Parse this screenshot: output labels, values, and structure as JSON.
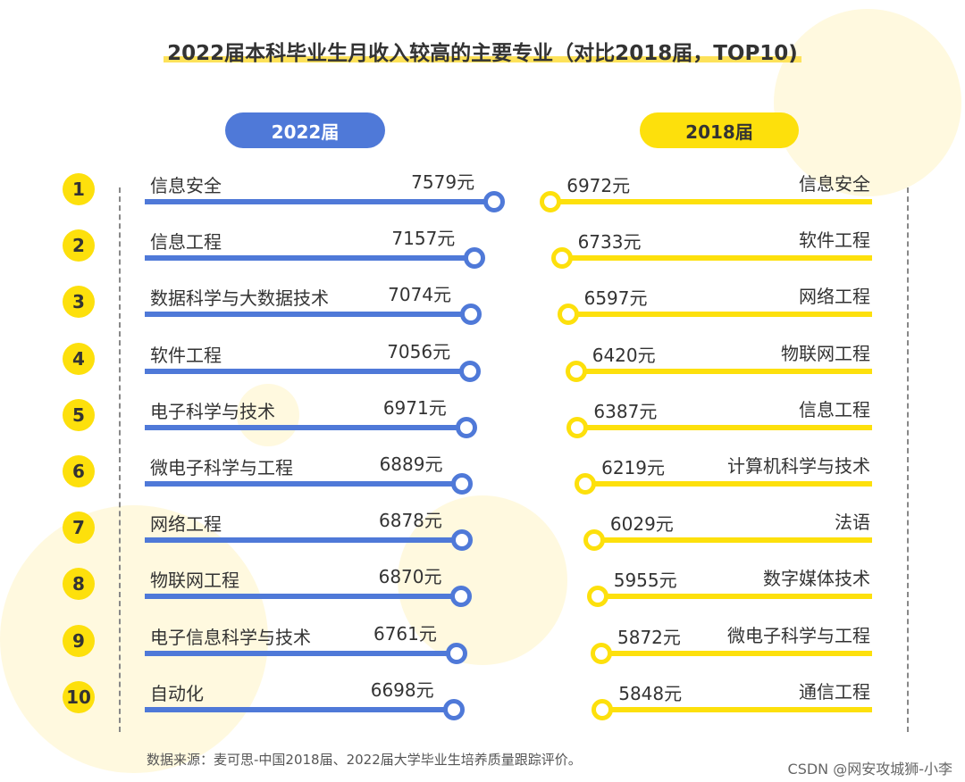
{
  "title": "2022届本科毕业生月收入较高的主要专业（对比2018届，TOP10)",
  "source": "数据来源：麦可思-中国2018届、2022届大学毕业生培养质量跟踪评价。",
  "watermark": "CSDN @网安攻城狮-小李",
  "colors": {
    "left": "#4f79d8",
    "right": "#fde00c"
  },
  "chart_data": {
    "type": "bar",
    "unit": "元",
    "ranks": [
      "1",
      "2",
      "3",
      "4",
      "5",
      "6",
      "7",
      "8",
      "9",
      "10"
    ],
    "series": [
      {
        "name": "2022届",
        "categories": [
          "信息安全",
          "信息工程",
          "数据科学与大数据技术",
          "软件工程",
          "电子科学与技术",
          "微电子科学与工程",
          "网络工程",
          "物联网工程",
          "电子信息科学与技术",
          "自动化"
        ],
        "values": [
          7579,
          7157,
          7074,
          7056,
          6971,
          6889,
          6878,
          6870,
          6761,
          6698
        ]
      },
      {
        "name": "2018届",
        "categories": [
          "信息安全",
          "软件工程",
          "网络工程",
          "物联网工程",
          "信息工程",
          "计算机科学与技术",
          "法语",
          "数字媒体技术",
          "微电子科学与工程",
          "通信工程"
        ],
        "values": [
          6972,
          6733,
          6597,
          6420,
          6387,
          6219,
          6029,
          5955,
          5872,
          5848
        ]
      }
    ],
    "value_labels": {
      "left": [
        "7579元",
        "7157元",
        "7074元",
        "7056元",
        "6971元",
        "6889元",
        "6878元",
        "6870元",
        "6761元",
        "6698元"
      ],
      "right": [
        "6972元",
        "6733元",
        "6597元",
        "6420元",
        "6387元",
        "6219元",
        "6029元",
        "5955元",
        "5872元",
        "5848元"
      ]
    }
  }
}
